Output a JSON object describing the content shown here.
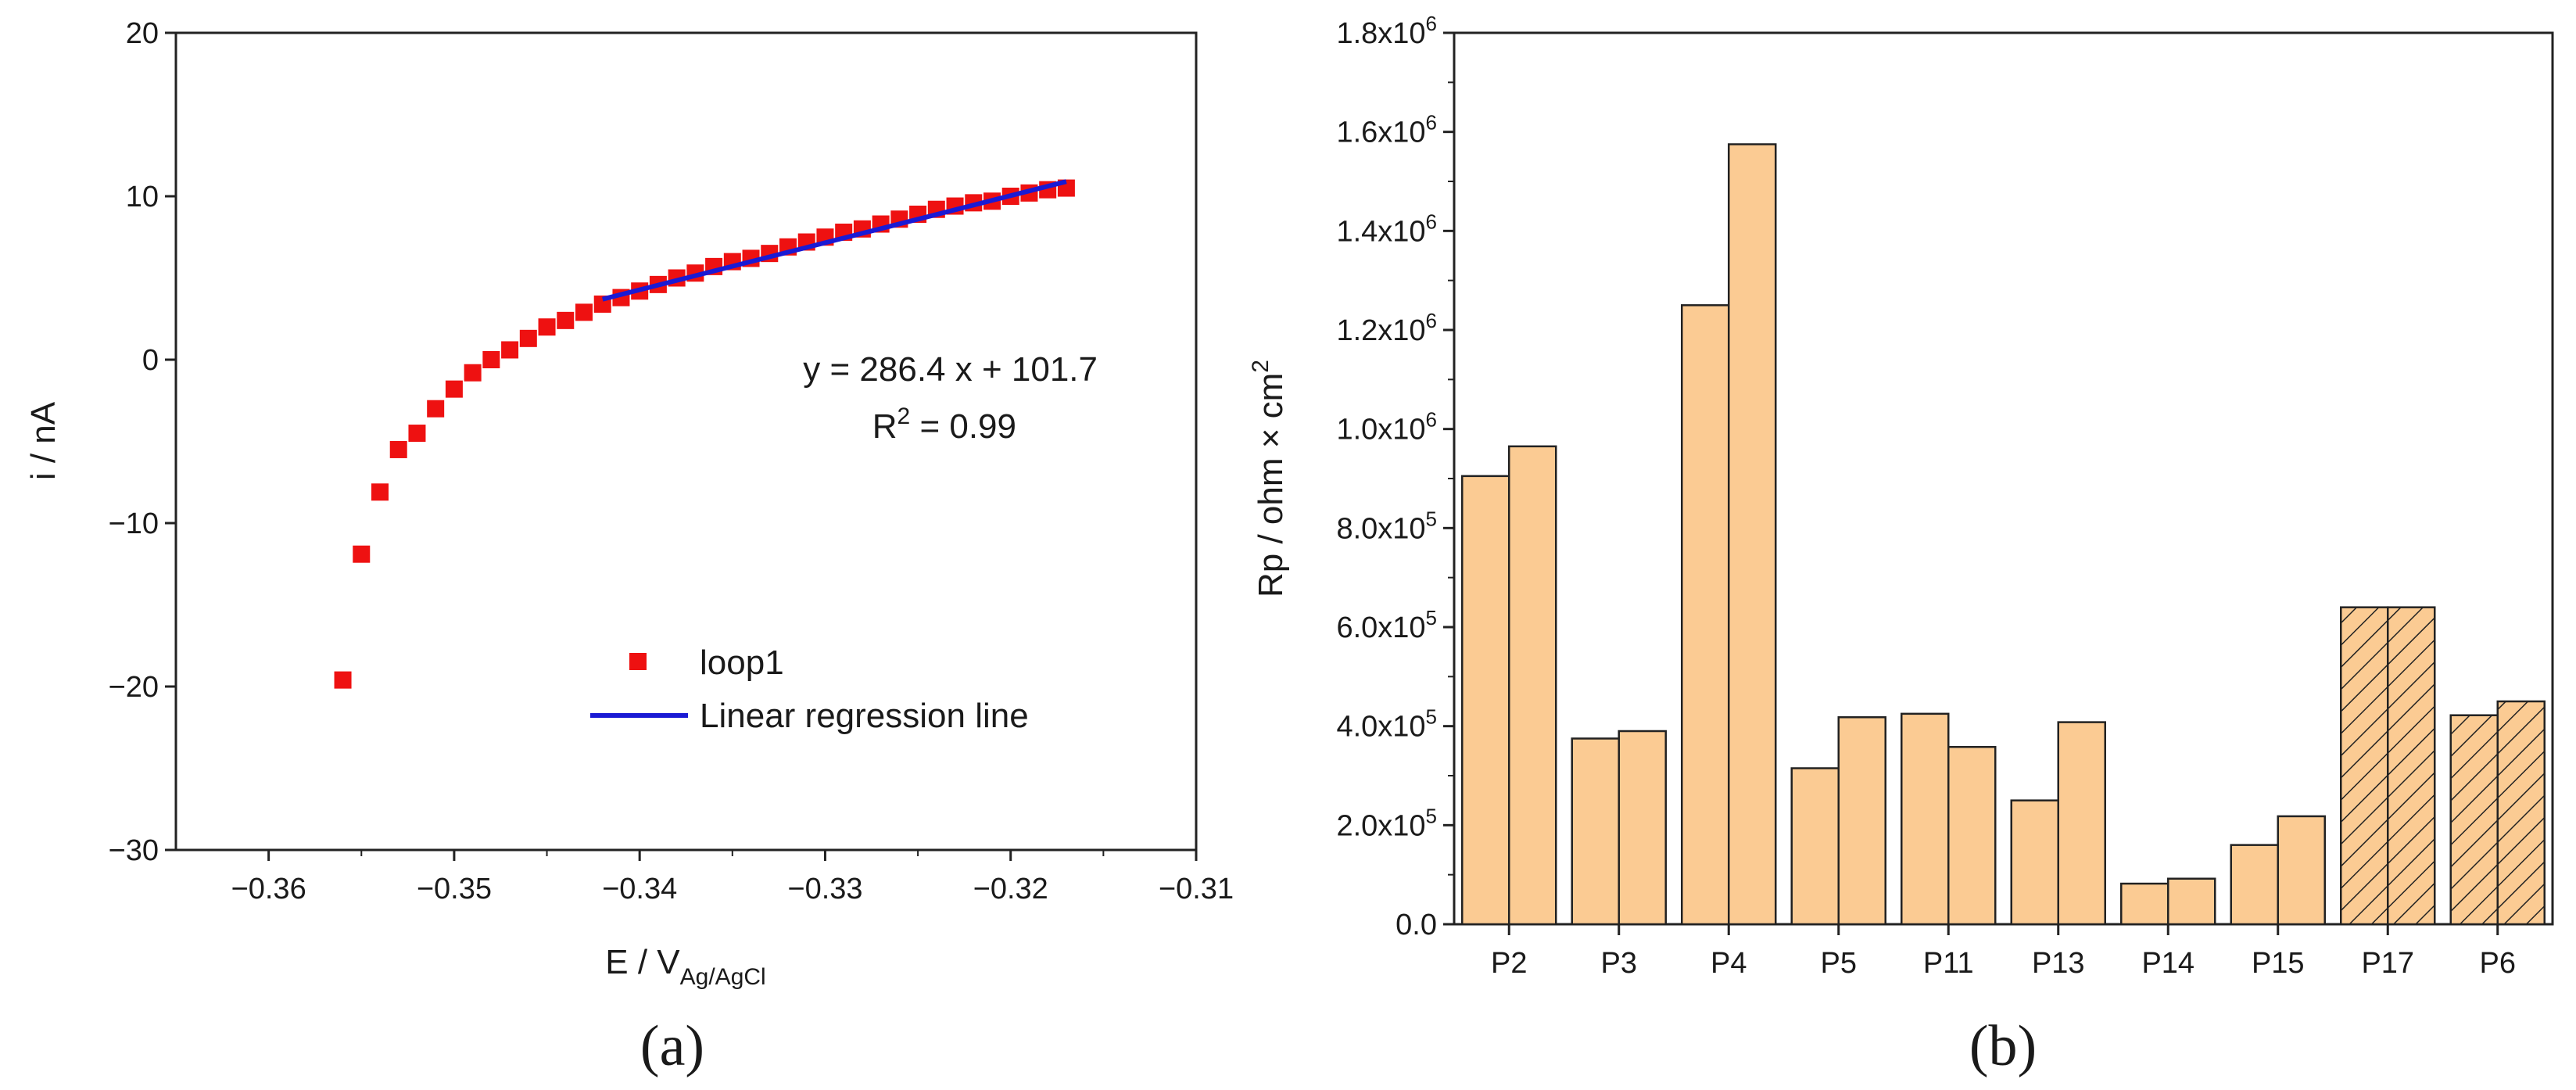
{
  "chart_data": [
    {
      "panel": "(a)",
      "type": "scatter",
      "xlabel": "E / V",
      "xlabel_sub": "Ag/AgCl",
      "ylabel": "i / nA",
      "xlim": [
        -0.365,
        -0.31
      ],
      "ylim": [
        -30,
        20
      ],
      "xticks": [
        -0.36,
        -0.35,
        -0.34,
        -0.33,
        -0.32,
        -0.31
      ],
      "xtick_labels": [
        "−0.36",
        "−0.35",
        "−0.34",
        "−0.33",
        "−0.32",
        "−0.31"
      ],
      "yticks": [
        -30,
        -20,
        -10,
        0,
        10,
        20
      ],
      "ytick_labels": [
        "−30",
        "−20",
        "−10",
        "0",
        "10",
        "20"
      ],
      "series": [
        {
          "name": "loop1",
          "kind": "points",
          "color": "#ee1111",
          "x": [
            -0.356,
            -0.355,
            -0.354,
            -0.353,
            -0.352,
            -0.351,
            -0.35,
            -0.349,
            -0.348,
            -0.347,
            -0.346,
            -0.345,
            -0.344,
            -0.343,
            -0.342,
            -0.341,
            -0.34,
            -0.339,
            -0.338,
            -0.337,
            -0.336,
            -0.335,
            -0.334,
            -0.333,
            -0.332,
            -0.331,
            -0.33,
            -0.329,
            -0.328,
            -0.327,
            -0.326,
            -0.325,
            -0.324,
            -0.323,
            -0.322,
            -0.321,
            -0.32,
            -0.319,
            -0.318,
            -0.317
          ],
          "y": [
            -19.6,
            -11.9,
            -8.1,
            -5.5,
            -4.5,
            -3.0,
            -1.8,
            -0.8,
            0.0,
            0.6,
            1.3,
            2.0,
            2.4,
            2.9,
            3.4,
            3.8,
            4.2,
            4.6,
            5.0,
            5.3,
            5.7,
            6.0,
            6.2,
            6.5,
            6.9,
            7.2,
            7.5,
            7.8,
            8.0,
            8.3,
            8.6,
            8.9,
            9.2,
            9.4,
            9.6,
            9.7,
            10.0,
            10.2,
            10.4,
            10.5
          ]
        },
        {
          "name": "Linear regression line",
          "kind": "line",
          "color": "#1a1ad4",
          "x": [
            -0.342,
            -0.317
          ],
          "y": [
            3.7,
            10.9
          ]
        }
      ],
      "annotation": {
        "line1": "y = 286.4 x + 101.7",
        "line2_prefix": "R",
        "line2_sup": "2",
        "line2_suffix": " = 0.99"
      },
      "legend": "center-bottom"
    },
    {
      "panel": "(b)",
      "type": "bar",
      "ylabel": "Rp / ohm × cm",
      "ylabel_sup": "2",
      "ylim": [
        0,
        1800000
      ],
      "yticks": [
        0,
        200000,
        400000,
        600000,
        800000,
        1000000,
        1200000,
        1400000,
        1600000,
        1800000
      ],
      "ytick_labels": [
        {
          "base": "0.0",
          "exp": ""
        },
        {
          "base": "2.0x10",
          "exp": "5"
        },
        {
          "base": "4.0x10",
          "exp": "5"
        },
        {
          "base": "6.0x10",
          "exp": "5"
        },
        {
          "base": "8.0x10",
          "exp": "5"
        },
        {
          "base": "1.0x10",
          "exp": "6"
        },
        {
          "base": "1.2x10",
          "exp": "6"
        },
        {
          "base": "1.4x10",
          "exp": "6"
        },
        {
          "base": "1.6x10",
          "exp": "6"
        },
        {
          "base": "1.8x10",
          "exp": "6"
        }
      ],
      "categories": [
        "P2",
        "P3",
        "P4",
        "P5",
        "P11",
        "P13",
        "P14",
        "P15",
        "P17",
        "P6"
      ],
      "values": [
        [
          905000,
          965000
        ],
        [
          375000,
          390000
        ],
        [
          1250000,
          1575000
        ],
        [
          315000,
          418000
        ],
        [
          425000,
          358000
        ],
        [
          250000,
          408000
        ],
        [
          82000,
          92000
        ],
        [
          160000,
          218000
        ],
        [
          640000,
          640000
        ],
        [
          422000,
          450000
        ]
      ],
      "hatched": [
        false,
        false,
        false,
        false,
        false,
        false,
        false,
        false,
        true,
        true
      ],
      "bar_color": "#fbcb93"
    }
  ]
}
